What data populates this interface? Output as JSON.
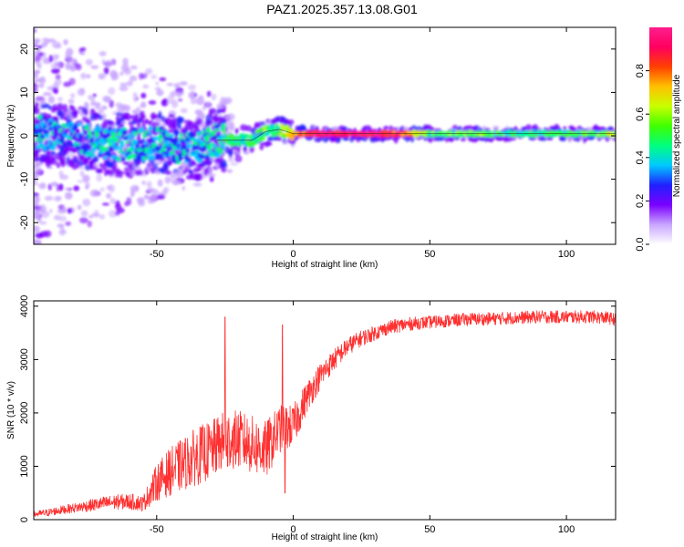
{
  "title": "PAZ1.2025.357.13.08.G01",
  "chart_data": [
    {
      "type": "heatmap",
      "xlabel": "Height of straight line (km)",
      "ylabel": "Frequency (Hz)",
      "xlim": [
        -95,
        118
      ],
      "ylim": [
        -25,
        25
      ],
      "xticks": [
        -50,
        0,
        50,
        100
      ],
      "yticks": [
        -20,
        -10,
        0,
        10,
        20
      ],
      "colorbar": {
        "label": "Normalized spectral amplitude",
        "range": [
          0,
          1
        ],
        "ticks": [
          0.0,
          0.2,
          0.4,
          0.6,
          0.8
        ],
        "colors": [
          "#ffffff",
          "#c9a6ff",
          "#7a00ff",
          "#2020ff",
          "#00c8ff",
          "#00ff80",
          "#40ff00",
          "#c8ff00",
          "#ffc000",
          "#ff4000",
          "#ff0060",
          "#ff1e8c"
        ]
      },
      "ridge": {
        "x": [
          -95,
          -85,
          -75,
          -65,
          -55,
          -50,
          -45,
          -40,
          -35,
          -30,
          -25,
          -20,
          -15,
          -10,
          -5,
          0,
          10,
          20,
          30,
          40,
          50,
          60,
          70,
          80,
          90,
          100,
          110,
          118
        ],
        "freq": [
          1,
          0,
          -1,
          -2,
          -2,
          -1.5,
          -2,
          -3,
          -3,
          -1,
          -1,
          -1,
          -1,
          1,
          1.5,
          0.5,
          0.5,
          0.5,
          0.5,
          0.5,
          0.5,
          0.5,
          0.5,
          0.5,
          0.5,
          0.5,
          0.5,
          0.5
        ],
        "amplitude": [
          0.3,
          0.3,
          0.35,
          0.35,
          0.35,
          0.35,
          0.35,
          0.35,
          0.35,
          0.4,
          0.45,
          0.45,
          0.45,
          0.5,
          0.5,
          0.7,
          0.95,
          0.95,
          0.95,
          0.85,
          0.5,
          0.5,
          0.55,
          0.45,
          0.45,
          0.5,
          0.5,
          0.6
        ]
      }
    },
    {
      "type": "line",
      "xlabel": "Height of straight line (km)",
      "ylabel": "SNR (10 * v/v)",
      "xlim": [
        -95,
        118
      ],
      "ylim": [
        0,
        4100
      ],
      "xticks": [
        -50,
        0,
        50,
        100
      ],
      "yticks": [
        0,
        1000,
        2000,
        3000,
        4000
      ],
      "color": "#ff3030",
      "series": [
        {
          "name": "SNR",
          "x": [
            -95,
            -90,
            -85,
            -80,
            -75,
            -70,
            -65,
            -60,
            -55,
            -50,
            -45,
            -40,
            -35,
            -30,
            -25,
            -20,
            -15,
            -10,
            -5,
            0,
            5,
            10,
            15,
            20,
            25,
            30,
            35,
            40,
            45,
            50,
            55,
            60,
            65,
            70,
            75,
            80,
            85,
            90,
            95,
            100,
            105,
            110,
            115,
            118
          ],
          "y": [
            100,
            130,
            180,
            220,
            260,
            300,
            330,
            340,
            300,
            700,
            900,
            1050,
            1200,
            1300,
            1500,
            1500,
            1400,
            1300,
            1700,
            1750,
            2300,
            2700,
            3000,
            3250,
            3400,
            3500,
            3600,
            3650,
            3680,
            3700,
            3720,
            3740,
            3760,
            3760,
            3770,
            3780,
            3790,
            3800,
            3800,
            3800,
            3800,
            3800,
            3780,
            3750
          ],
          "noise": [
            60,
            70,
            80,
            90,
            110,
            130,
            140,
            150,
            150,
            350,
            450,
            500,
            550,
            550,
            550,
            550,
            550,
            550,
            450,
            400,
            300,
            250,
            200,
            170,
            150,
            140,
            130,
            130,
            120,
            120,
            120,
            120,
            120,
            120,
            120,
            120,
            120,
            120,
            120,
            120,
            120,
            120,
            120,
            120
          ],
          "spikes": [
            {
              "x": -25,
              "y": 3800
            },
            {
              "x": -24,
              "y": 1000
            },
            {
              "x": -4,
              "y": 3650
            },
            {
              "x": -3,
              "y": 500
            }
          ]
        }
      ]
    }
  ]
}
